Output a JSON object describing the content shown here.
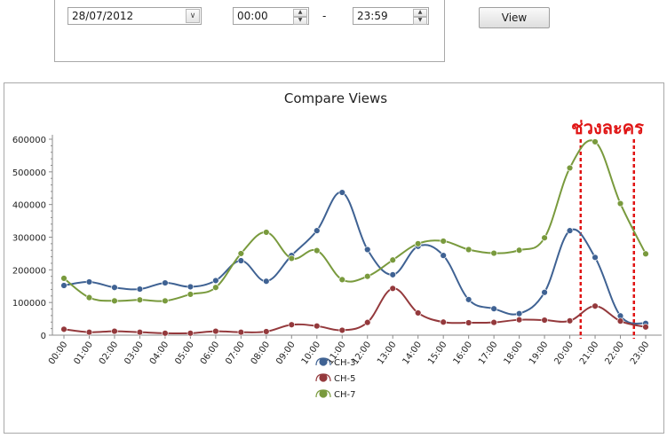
{
  "filter": {
    "date_value": "28/07/2012",
    "time_from": "00:00",
    "time_to": "23:59",
    "separator": "-",
    "view_label": "View"
  },
  "chart_data": {
    "type": "line",
    "title": "Compare Views",
    "xlabel": "",
    "ylabel": "",
    "categories": [
      "00:00",
      "01:00",
      "02:00",
      "03:00",
      "04:00",
      "05:00",
      "06:00",
      "07:00",
      "08:00",
      "09:00",
      "10:00",
      "11:00",
      "12:00",
      "13:00",
      "14:00",
      "15:00",
      "16:00",
      "17:00",
      "18:00",
      "19:00",
      "20:00",
      "21:00",
      "22:00",
      "23:00"
    ],
    "y_ticks": [
      "0",
      "100000",
      "200000",
      "300000",
      "400000",
      "500000",
      "600000"
    ],
    "ylim": [
      0,
      600000
    ],
    "grid": false,
    "legend_position": "bottom-center",
    "series": [
      {
        "name": "CH-3",
        "color": "#3f6293",
        "values": [
          152000,
          163000,
          146000,
          141000,
          160000,
          148000,
          167000,
          228000,
          165000,
          244000,
          320000,
          437000,
          262000,
          185000,
          272000,
          244000,
          109000,
          81000,
          66000,
          131000,
          320000,
          238000,
          59000,
          36000
        ]
      },
      {
        "name": "CH-5",
        "color": "#94393c",
        "values": [
          18000,
          9000,
          12000,
          9000,
          6000,
          6000,
          12000,
          9000,
          11000,
          32000,
          28000,
          15000,
          39000,
          143000,
          68000,
          40000,
          38000,
          39000,
          47000,
          46000,
          44000,
          89000,
          43000,
          25000
        ]
      },
      {
        "name": "CH-7",
        "color": "#799a3d",
        "values": [
          174000,
          115000,
          105000,
          108000,
          105000,
          125000,
          146000,
          250000,
          315000,
          235000,
          259000,
          170000,
          180000,
          230000,
          280000,
          288000,
          262000,
          251000,
          260000,
          298000,
          512000,
          592000,
          403000,
          249000
        ]
      }
    ],
    "annotation": {
      "text": "ช่วงละคร",
      "color": "#e01414",
      "x_range": [
        "20:00",
        "22:00"
      ]
    }
  }
}
